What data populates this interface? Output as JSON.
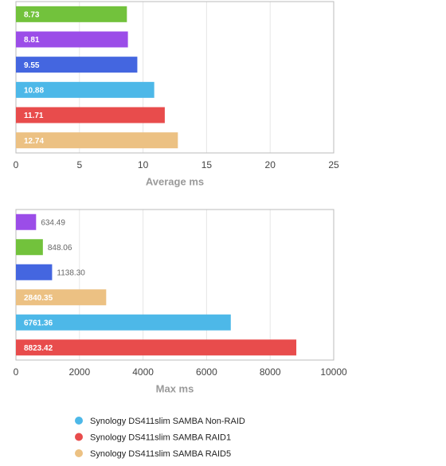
{
  "chart_data": [
    {
      "type": "bar",
      "orientation": "horizontal",
      "xlabel": "Average ms",
      "values": [
        8.73,
        8.81,
        9.55,
        10.88,
        11.71,
        12.74
      ],
      "colors": [
        "#72c23c",
        "#9b4de8",
        "#4466e0",
        "#4db8e8",
        "#e84c4c",
        "#ecc183"
      ],
      "xlim": [
        0,
        25
      ],
      "xticks": [
        0,
        5,
        10,
        15,
        20,
        25
      ],
      "grid": true
    },
    {
      "type": "bar",
      "orientation": "horizontal",
      "xlabel": "Max ms",
      "values": [
        634.49,
        848.06,
        1138.3,
        2840.35,
        6761.36,
        8823.42
      ],
      "value_labels": [
        "634.49",
        "848.06",
        "1138.30",
        "2840.35",
        "6761.36",
        "8823.42"
      ],
      "colors": [
        "#9b4de8",
        "#72c23c",
        "#4466e0",
        "#ecc183",
        "#4db8e8",
        "#e84c4c"
      ],
      "xlim": [
        0,
        10000
      ],
      "xticks": [
        0,
        2000,
        4000,
        6000,
        8000,
        10000
      ],
      "grid": true
    }
  ],
  "legend": [
    {
      "name": "Synology DS411slim SAMBA Non-RAID",
      "color": "#4db8e8"
    },
    {
      "name": "Synology DS411slim SAMBA RAID1",
      "color": "#e84c4c"
    },
    {
      "name": "Synology DS411slim SAMBA RAID5",
      "color": "#ecc183"
    }
  ]
}
